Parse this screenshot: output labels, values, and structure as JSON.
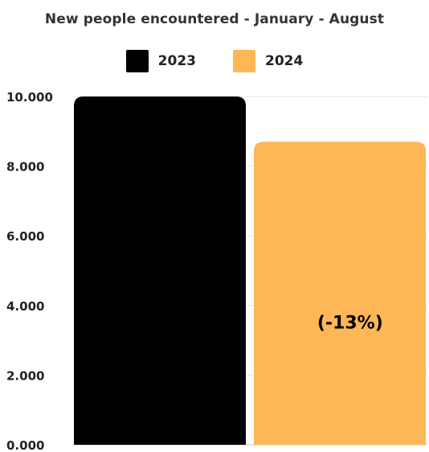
{
  "chart_data": {
    "type": "bar",
    "title": "New people encountered - January - August",
    "categories": [
      "January - August"
    ],
    "series": [
      {
        "name": "2023",
        "values": [
          10000
        ],
        "color": "#000000"
      },
      {
        "name": "2024",
        "values": [
          8700
        ],
        "color": "#fdb756"
      }
    ],
    "ylim": [
      0,
      10000
    ],
    "yticks": [
      0,
      2000,
      4000,
      6000,
      8000,
      10000
    ],
    "ytick_labels": [
      "0.000",
      "2.000",
      "4.000",
      "6.000",
      "8.000",
      "10.000"
    ],
    "annotations": [
      {
        "series": "2024",
        "text": "(-13%)"
      }
    ],
    "grid": true,
    "legend": "top"
  }
}
